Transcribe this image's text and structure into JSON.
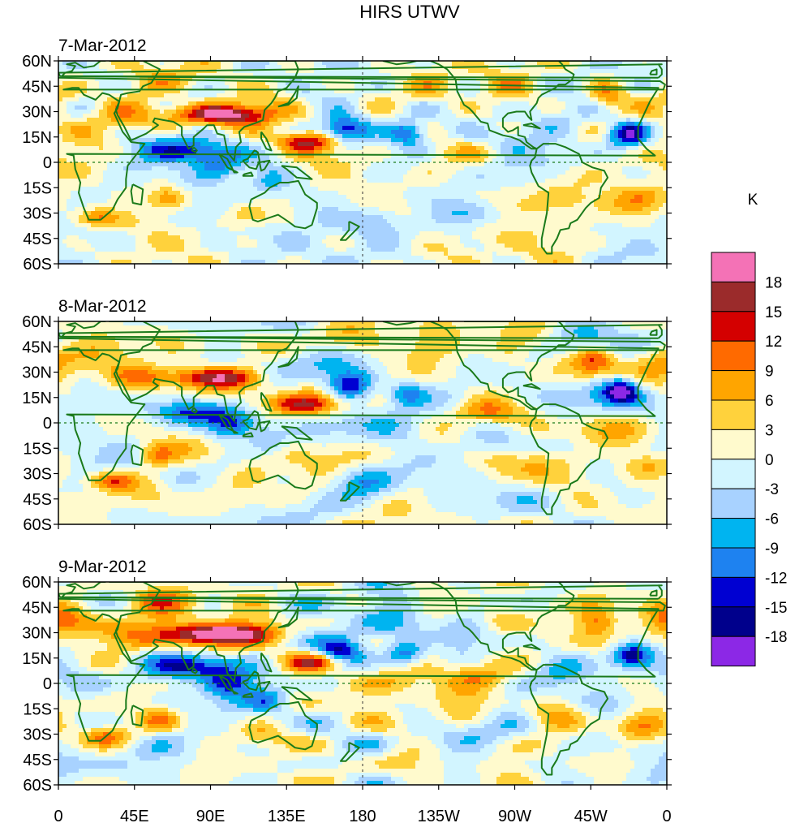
{
  "chart_data": {
    "type": "heatmap",
    "title": "HIRS UTWV",
    "units_label": "K",
    "panels": [
      {
        "date": "7-Mar-2012"
      },
      {
        "date": "8-Mar-2012"
      },
      {
        "date": "9-Mar-2012"
      }
    ],
    "y_ticks": [
      "60N",
      "45N",
      "30N",
      "15N",
      "0",
      "15S",
      "30S",
      "45S",
      "60S"
    ],
    "x_ticks": [
      "0",
      "45E",
      "90E",
      "135E",
      "180",
      "135W",
      "90W",
      "45W",
      "0"
    ],
    "lat_range": [
      -60,
      60
    ],
    "lon_range": [
      0,
      360
    ],
    "colorbar": {
      "levels": [
        "18",
        "15",
        "12",
        "9",
        "6",
        "3",
        "0",
        "-3",
        "-6",
        "-9",
        "-12",
        "-15",
        "-18"
      ],
      "colors": [
        "#f472b6",
        "#9b2b2b",
        "#d40000",
        "#ff6a00",
        "#ffa500",
        "#ffd23c",
        "#fffacd",
        "#d2f5ff",
        "#a8d2ff",
        "#00b4f0",
        "#1e82f0",
        "#0000d2",
        "#00008c",
        "#8c28e6"
      ]
    }
  }
}
